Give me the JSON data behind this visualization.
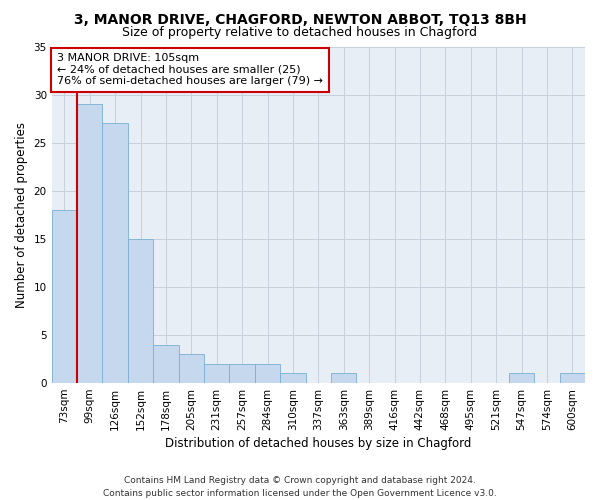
{
  "title": "3, MANOR DRIVE, CHAGFORD, NEWTON ABBOT, TQ13 8BH",
  "subtitle": "Size of property relative to detached houses in Chagford",
  "xlabel": "Distribution of detached houses by size in Chagford",
  "ylabel": "Number of detached properties",
  "categories": [
    "73sqm",
    "99sqm",
    "126sqm",
    "152sqm",
    "178sqm",
    "205sqm",
    "231sqm",
    "257sqm",
    "284sqm",
    "310sqm",
    "337sqm",
    "363sqm",
    "389sqm",
    "416sqm",
    "442sqm",
    "468sqm",
    "495sqm",
    "521sqm",
    "547sqm",
    "574sqm",
    "600sqm"
  ],
  "values": [
    18,
    29,
    27,
    15,
    4,
    3,
    2,
    2,
    2,
    1,
    0,
    1,
    0,
    0,
    0,
    0,
    0,
    0,
    1,
    0,
    1
  ],
  "bar_color": "#c5d8ed",
  "bar_edge_color": "#7bafd4",
  "annotation_text_line1": "3 MANOR DRIVE: 105sqm",
  "annotation_text_line2": "← 24% of detached houses are smaller (25)",
  "annotation_text_line3": "76% of semi-detached houses are larger (79) →",
  "annotation_box_color": "white",
  "annotation_box_edge_color": "#cc0000",
  "red_line_color": "#cc0000",
  "ylim": [
    0,
    35
  ],
  "yticks": [
    0,
    5,
    10,
    15,
    20,
    25,
    30,
    35
  ],
  "grid_color": "#c8d0dc",
  "bg_color": "#e8eef5",
  "footer_line1": "Contains HM Land Registry data © Crown copyright and database right 2024.",
  "footer_line2": "Contains public sector information licensed under the Open Government Licence v3.0.",
  "title_fontsize": 10,
  "subtitle_fontsize": 9,
  "axis_label_fontsize": 8.5,
  "tick_fontsize": 7.5,
  "annotation_fontsize": 8,
  "footer_fontsize": 6.5
}
